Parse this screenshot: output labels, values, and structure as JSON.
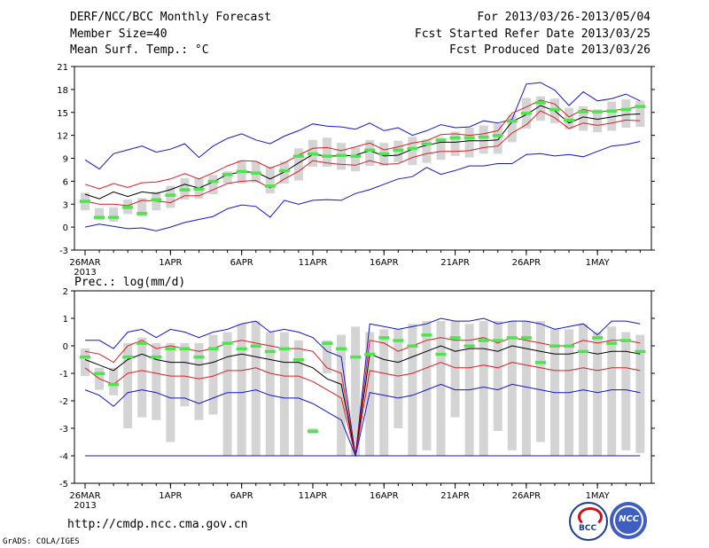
{
  "header": {
    "title": "DERF/NCC/BCC Monthly Forecast",
    "member_size": "Member Size=40",
    "variable": "Mean Surf. Temp.: °C",
    "period": "For 2013/03/26-2013/05/04",
    "started": "Fcst Started Refer Date 2013/03/25",
    "produced": "Fcst Produced Date 2013/03/26"
  },
  "footer": {
    "url": "http://cmdp.ncc.cma.gov.cn",
    "credit": "GrADS: COLA/IGES",
    "logo_bcc": "BCC",
    "logo_ncc": "NCC"
  },
  "colors": {
    "box": "#d4d4d4",
    "mean": "#000000",
    "spread": "#dd1c24",
    "extreme": "#1414c8",
    "median": "#4ee44e"
  },
  "chart_data": [
    {
      "type": "line",
      "title": "Mean Surf. Temp.: °C",
      "ylim": [
        -3,
        21
      ],
      "yticks": [
        -3,
        0,
        3,
        6,
        9,
        12,
        15,
        18,
        21
      ],
      "xticks": [
        "26MAR",
        "1APR",
        "6APR",
        "11APR",
        "16APR",
        "21APR",
        "26APR",
        "1MAY"
      ],
      "xtick_index": [
        0,
        6,
        11,
        16,
        21,
        26,
        31,
        36
      ],
      "year_label": "2013",
      "x_count": 40,
      "series": [
        {
          "name": "max",
          "values": [
            8.8,
            7.6,
            9.6,
            10.1,
            10.6,
            9.8,
            10.2,
            10.9,
            9.1,
            10.6,
            11.6,
            12.2,
            11.4,
            10.9,
            11.9,
            12.6,
            13.5,
            13.2,
            13.1,
            12.8,
            13.6,
            12.6,
            13.0,
            12.0,
            12.6,
            13.4,
            13.0,
            13.1,
            13.9,
            13.6,
            14.1,
            18.7,
            18.9,
            17.9,
            15.9,
            17.7,
            16.5,
            16.8,
            17.4,
            16.5
          ]
        },
        {
          "name": "upper",
          "values": [
            5.6,
            5.0,
            5.7,
            5.2,
            5.8,
            5.9,
            6.3,
            7.0,
            6.3,
            7.1,
            8.0,
            8.7,
            8.6,
            7.7,
            8.4,
            9.4,
            10.3,
            10.4,
            10.0,
            10.5,
            11.0,
            10.1,
            10.5,
            11.0,
            11.3,
            12.1,
            12.2,
            12.0,
            12.2,
            12.6,
            14.9,
            15.7,
            16.6,
            16.1,
            14.4,
            15.4,
            15.0,
            15.3,
            15.4,
            15.8
          ]
        },
        {
          "name": "mean",
          "values": [
            4.3,
            3.7,
            4.6,
            4.0,
            4.6,
            4.4,
            4.9,
            5.6,
            5.1,
            5.9,
            6.9,
            7.2,
            7.2,
            6.3,
            7.2,
            8.4,
            9.5,
            9.3,
            9.3,
            9.4,
            10.0,
            9.3,
            9.4,
            10.2,
            10.7,
            11.1,
            11.1,
            11.3,
            11.3,
            11.4,
            13.8,
            14.7,
            15.9,
            15.2,
            13.6,
            14.4,
            14.1,
            14.4,
            14.7,
            14.8
          ]
        },
        {
          "name": "lower",
          "values": [
            3.4,
            3.0,
            3.0,
            2.8,
            3.5,
            3.4,
            3.2,
            4.1,
            4.1,
            4.9,
            5.7,
            6.0,
            6.1,
            5.1,
            6.3,
            7.3,
            8.7,
            8.4,
            8.2,
            8.1,
            8.7,
            8.2,
            8.3,
            9.1,
            9.6,
            9.9,
            9.9,
            10.0,
            10.4,
            10.6,
            12.3,
            13.4,
            15.2,
            14.3,
            12.9,
            13.6,
            13.3,
            13.6,
            14.0,
            13.9
          ]
        },
        {
          "name": "min",
          "values": [
            0.0,
            0.4,
            0.1,
            -0.2,
            -0.1,
            -0.5,
            0.0,
            0.6,
            1.0,
            1.4,
            2.4,
            2.9,
            2.7,
            1.3,
            3.5,
            3.0,
            3.5,
            3.6,
            3.5,
            4.4,
            4.9,
            5.6,
            6.3,
            6.6,
            7.8,
            6.9,
            7.4,
            8.0,
            8.0,
            8.3,
            8.3,
            9.5,
            9.6,
            9.3,
            9.5,
            9.2,
            9.9,
            10.6,
            10.8,
            11.2
          ]
        },
        {
          "name": "median",
          "values": [
            3.4,
            1.3,
            1.3,
            2.6,
            1.8,
            3.6,
            4.2,
            4.9,
            5.0,
            6.0,
            6.9,
            7.3,
            7.1,
            5.4,
            7.4,
            9.3,
            9.6,
            9.3,
            9.4,
            9.3,
            10.1,
            9.6,
            10.1,
            10.3,
            10.9,
            11.4,
            11.7,
            11.7,
            11.8,
            12.0,
            13.9,
            14.9,
            16.3,
            15.4,
            14.0,
            15.1,
            15.1,
            15.2,
            15.4,
            15.8
          ]
        }
      ],
      "box_low": [
        2.2,
        0.9,
        0.7,
        1.7,
        1.4,
        2.2,
        2.5,
        3.6,
        3.7,
        4.3,
        5.7,
        5.7,
        5.8,
        4.4,
        5.7,
        6.1,
        7.9,
        7.9,
        7.5,
        7.3,
        8.0,
        8.0,
        8.5,
        8.1,
        8.4,
        8.8,
        9.3,
        9.1,
        9.6,
        9.6,
        11.1,
        12.9,
        13.9,
        13.6,
        12.8,
        12.6,
        12.4,
        12.6,
        13.0,
        13.1
      ],
      "box_high": [
        4.5,
        2.5,
        2.6,
        3.6,
        3.8,
        4.6,
        5.4,
        6.4,
        6.4,
        6.8,
        7.3,
        8.7,
        8.6,
        7.9,
        8.6,
        10.3,
        11.4,
        11.7,
        11.0,
        10.4,
        11.4,
        11.0,
        11.3,
        11.8,
        11.5,
        11.7,
        12.5,
        13.0,
        13.3,
        13.5,
        14.7,
        16.9,
        17.1,
        16.8,
        15.6,
        15.8,
        15.4,
        16.4,
        16.7,
        16.5
      ]
    },
    {
      "type": "line",
      "title": "Prec.: log(mm/d)",
      "ylim": [
        -5,
        2
      ],
      "yticks": [
        -5,
        -4,
        -3,
        -2,
        -1,
        0,
        1,
        2
      ],
      "xticks": [
        "26MAR",
        "1APR",
        "6APR",
        "11APR",
        "16APR",
        "21APR",
        "26APR",
        "1MAY"
      ],
      "xtick_index": [
        0,
        6,
        11,
        16,
        21,
        26,
        31,
        36
      ],
      "year_label": "2013",
      "x_count": 40,
      "series": [
        {
          "name": "max",
          "values": [
            0.2,
            0.2,
            -0.1,
            0.5,
            0.6,
            0.3,
            0.6,
            0.5,
            0.3,
            0.5,
            0.6,
            0.8,
            0.9,
            0.5,
            0.6,
            0.5,
            0.3,
            -0.2,
            -0.4,
            -4.0,
            0.8,
            0.7,
            0.6,
            0.7,
            0.8,
            1.0,
            0.9,
            0.9,
            1.0,
            0.8,
            0.9,
            0.9,
            0.8,
            0.6,
            0.7,
            0.8,
            0.4,
            0.9,
            0.9,
            0.8
          ]
        },
        {
          "name": "upper",
          "values": [
            -0.2,
            -0.3,
            -0.6,
            0.0,
            0.2,
            -0.1,
            0.0,
            -0.1,
            -0.2,
            -0.1,
            0.1,
            0.2,
            0.1,
            0.0,
            -0.1,
            -0.1,
            -0.2,
            -0.8,
            -1.0,
            -4.0,
            0.2,
            0.1,
            -0.2,
            0.0,
            0.2,
            0.3,
            0.2,
            0.2,
            0.3,
            0.1,
            0.3,
            0.2,
            0.1,
            0.0,
            0.0,
            0.2,
            0.1,
            0.2,
            0.2,
            0.1
          ]
        },
        {
          "name": "mean",
          "values": [
            -0.5,
            -0.7,
            -0.9,
            -0.5,
            -0.3,
            -0.5,
            -0.6,
            -0.6,
            -0.7,
            -0.6,
            -0.4,
            -0.3,
            -0.4,
            -0.5,
            -0.6,
            -0.6,
            -0.8,
            -1.2,
            -1.4,
            -4.0,
            -0.3,
            -0.5,
            -0.6,
            -0.4,
            -0.2,
            0.0,
            -0.2,
            -0.1,
            -0.1,
            -0.2,
            0.0,
            -0.1,
            -0.2,
            -0.3,
            -0.3,
            -0.2,
            -0.3,
            -0.2,
            -0.2,
            -0.3
          ]
        },
        {
          "name": "lower",
          "values": [
            -0.8,
            -1.2,
            -1.4,
            -1.0,
            -0.9,
            -1.0,
            -1.1,
            -1.1,
            -1.2,
            -1.1,
            -0.9,
            -0.9,
            -0.8,
            -1.0,
            -1.1,
            -1.1,
            -1.3,
            -1.6,
            -1.9,
            -4.0,
            -0.9,
            -1.0,
            -1.1,
            -1.0,
            -0.8,
            -0.6,
            -0.8,
            -0.8,
            -0.7,
            -0.8,
            -0.6,
            -0.7,
            -0.8,
            -0.9,
            -0.9,
            -0.8,
            -0.9,
            -0.8,
            -0.8,
            -0.9
          ]
        },
        {
          "name": "min",
          "values": [
            -1.6,
            -1.8,
            -2.2,
            -1.7,
            -1.6,
            -1.7,
            -1.9,
            -1.9,
            -2.1,
            -1.9,
            -1.7,
            -1.7,
            -1.6,
            -1.8,
            -1.9,
            -1.9,
            -2.1,
            -2.4,
            -2.7,
            -4.0,
            -1.7,
            -1.8,
            -1.9,
            -1.8,
            -1.6,
            -1.4,
            -1.6,
            -1.6,
            -1.5,
            -1.6,
            -1.4,
            -1.5,
            -1.6,
            -1.7,
            -1.7,
            -1.6,
            -1.7,
            -1.6,
            -1.6,
            -1.7
          ]
        },
        {
          "name": "median",
          "values": [
            -0.4,
            -1.0,
            -1.4,
            -0.4,
            0.1,
            -0.4,
            -0.1,
            -0.1,
            -0.4,
            -0.1,
            0.1,
            -0.1,
            0.0,
            -0.2,
            -0.1,
            -0.5,
            -3.1,
            0.1,
            -0.1,
            -0.4,
            -0.3,
            0.3,
            0.2,
            0.0,
            0.4,
            -0.3,
            0.3,
            0.0,
            0.2,
            0.2,
            0.3,
            0.3,
            -0.6,
            0.0,
            0.0,
            -0.2,
            0.3,
            0.1,
            0.2,
            -0.2
          ]
        },
        {
          "name": "floor",
          "values": [
            -4,
            -4,
            -4,
            -4,
            -4,
            -4,
            -4,
            -4,
            -4,
            -4,
            -4,
            -4,
            -4,
            -4,
            -4,
            -4,
            -4,
            -4,
            -4,
            -4,
            -4,
            -4,
            -4,
            -4,
            -4,
            -4,
            -4,
            -4,
            -4,
            -4,
            -4,
            -4,
            -4,
            -4,
            -4,
            -4,
            -4,
            -4,
            -4,
            -4
          ]
        }
      ],
      "box_low": [
        -1.1,
        -1.6,
        -1.8,
        -3.0,
        -2.6,
        -2.7,
        -3.5,
        -2.2,
        -2.7,
        -2.5,
        -4.0,
        -4.0,
        -4.0,
        -4.0,
        -4.0,
        -4.0,
        -3.2,
        -1.0,
        -4.0,
        -4.0,
        -4.0,
        -4.0,
        -3.0,
        -4.0,
        -3.8,
        -4.0,
        -2.6,
        -4.0,
        -4.0,
        -3.1,
        -3.8,
        -4.0,
        -3.5,
        -4.0,
        -4.0,
        -4.0,
        -4.0,
        -4.0,
        -3.8,
        -3.9
      ],
      "box_high": [
        -0.1,
        -0.8,
        -0.8,
        0.1,
        0.3,
        0.1,
        0.1,
        0.1,
        0.1,
        0.4,
        0.5,
        0.8,
        0.9,
        0.5,
        0.5,
        0.2,
        -3.0,
        0.2,
        0.4,
        0.7,
        0.5,
        0.6,
        0.6,
        0.8,
        0.9,
        0.9,
        0.9,
        0.8,
        0.9,
        0.9,
        0.9,
        0.9,
        0.9,
        0.6,
        0.6,
        0.8,
        0.5,
        0.7,
        0.5,
        0.4
      ]
    }
  ]
}
